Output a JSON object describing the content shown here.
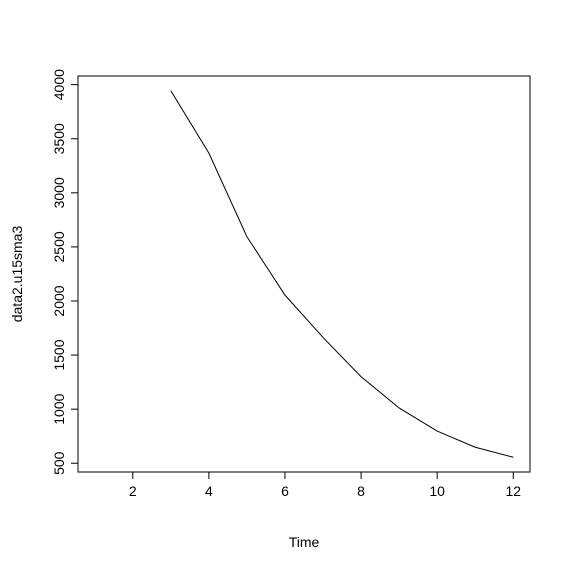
{
  "chart_data": {
    "type": "line",
    "x": [
      1,
      2,
      3,
      4,
      5,
      6,
      7,
      8,
      9,
      10,
      11,
      12
    ],
    "series": [
      {
        "name": "data2.u15sma3",
        "color": "#000000",
        "values": [
          null,
          null,
          3944,
          3367,
          2594,
          2054,
          1663,
          1300,
          1011,
          797,
          648,
          555
        ]
      }
    ],
    "xlabel": "Time",
    "ylabel": "data2.u15sma3",
    "xlim": [
      0.56,
      12.44
    ],
    "ylim": [
      419,
      4080
    ],
    "xticks": [
      2,
      4,
      6,
      8,
      10,
      12
    ],
    "yticks": [
      500,
      1000,
      1500,
      2000,
      2500,
      3000,
      3500,
      4000
    ]
  }
}
